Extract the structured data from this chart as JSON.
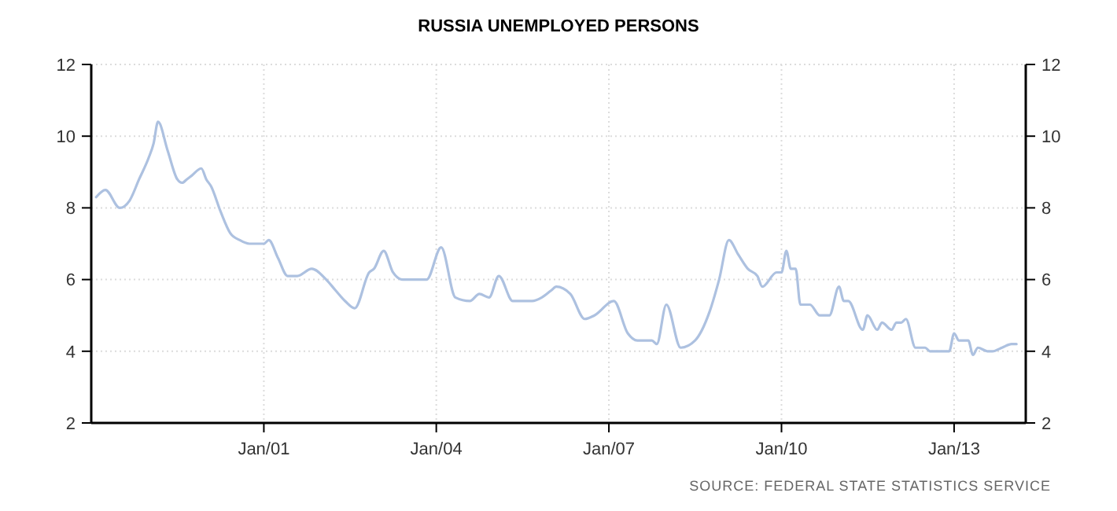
{
  "chart_data": {
    "type": "line",
    "title": "RUSSIA UNEMPLOYED PERSONS",
    "x": [
      "1998-02",
      "1998-04",
      "1998-07",
      "1998-09",
      "1998-11",
      "1999-01",
      "1999-02",
      "1999-03",
      "1999-05",
      "1999-07",
      "1999-08",
      "1999-09",
      "1999-10",
      "1999-12",
      "2000-01",
      "2000-02",
      "2000-04",
      "2000-06",
      "2000-08",
      "2000-10",
      "2001-01",
      "2001-02",
      "2001-04",
      "2001-06",
      "2001-08",
      "2001-11",
      "2002-02",
      "2002-04",
      "2002-06",
      "2002-08",
      "2002-11",
      "2002-12",
      "2003-02",
      "2003-04",
      "2003-06",
      "2003-08",
      "2003-11",
      "2004-02",
      "2004-05",
      "2004-08",
      "2004-10",
      "2004-12",
      "2005-02",
      "2005-05",
      "2005-09",
      "2005-11",
      "2006-01",
      "2006-02",
      "2006-05",
      "2006-08",
      "2006-10",
      "2007-02",
      "2007-05",
      "2007-07",
      "2007-10",
      "2007-11",
      "2008-01",
      "2008-04",
      "2008-07",
      "2008-10",
      "2008-12",
      "2009-02",
      "2009-04",
      "2009-06",
      "2009-08",
      "2009-09",
      "2009-12",
      "2010-01",
      "2010-02",
      "2010-03",
      "2010-04",
      "2010-05",
      "2010-07",
      "2010-09",
      "2010-11",
      "2011-01",
      "2011-02",
      "2011-03",
      "2011-06",
      "2011-07",
      "2011-09",
      "2011-10",
      "2011-12",
      "2012-01",
      "2012-02",
      "2012-03",
      "2012-05",
      "2012-07",
      "2012-08",
      "2012-10",
      "2012-12",
      "2013-01",
      "2013-02",
      "2013-04",
      "2013-05",
      "2013-06",
      "2013-08",
      "2013-09",
      "2013-11",
      "2014-01",
      "2014-02"
    ],
    "series": [
      {
        "color": "#adc1e0",
        "values": [
          8.3,
          8.5,
          8.0,
          8.2,
          8.8,
          9.4,
          9.8,
          10.4,
          9.6,
          8.8,
          8.7,
          8.8,
          8.9,
          9.1,
          8.8,
          8.6,
          7.9,
          7.3,
          7.1,
          7.0,
          7.0,
          7.1,
          6.6,
          6.1,
          6.1,
          6.3,
          6.0,
          5.7,
          5.4,
          5.2,
          6.2,
          6.3,
          6.8,
          6.2,
          6.0,
          6.0,
          6.0,
          6.9,
          5.5,
          5.4,
          5.6,
          5.5,
          6.1,
          5.4,
          5.4,
          5.5,
          5.7,
          5.8,
          5.6,
          4.9,
          5.0,
          5.4,
          4.5,
          4.3,
          4.3,
          4.2,
          5.3,
          4.1,
          4.3,
          5.1,
          6.0,
          7.1,
          6.7,
          6.3,
          6.1,
          5.8,
          6.2,
          6.2,
          6.8,
          6.3,
          6.3,
          5.3,
          5.3,
          5.0,
          5.0,
          5.8,
          5.4,
          5.4,
          4.6,
          5.0,
          4.6,
          4.8,
          4.6,
          4.8,
          4.8,
          4.9,
          4.1,
          4.1,
          4.0,
          4.0,
          4.0,
          4.5,
          4.3,
          4.3,
          3.9,
          4.1,
          4.0,
          4.0,
          4.1,
          4.2,
          4.2
        ]
      }
    ],
    "xlim": [
      "1998-01",
      "2014-04"
    ],
    "xticks": [
      {
        "value": "2001-01",
        "label": "Jan/01"
      },
      {
        "value": "2004-01",
        "label": "Jan/04"
      },
      {
        "value": "2007-01",
        "label": "Jan/07"
      },
      {
        "value": "2010-01",
        "label": "Jan/10"
      },
      {
        "value": "2013-01",
        "label": "Jan/13"
      }
    ],
    "ylim": [
      2,
      12
    ],
    "yticks": [
      2,
      4,
      6,
      8,
      10,
      12
    ],
    "y2lim": [
      2,
      12
    ],
    "y2ticks": [
      2,
      4,
      6,
      8,
      10,
      12
    ],
    "grid": true,
    "marker": "none",
    "line_style": "solid",
    "annotations": [
      "SOURCE: FEDERAL STATE STATISTICS SERVICE"
    ]
  }
}
